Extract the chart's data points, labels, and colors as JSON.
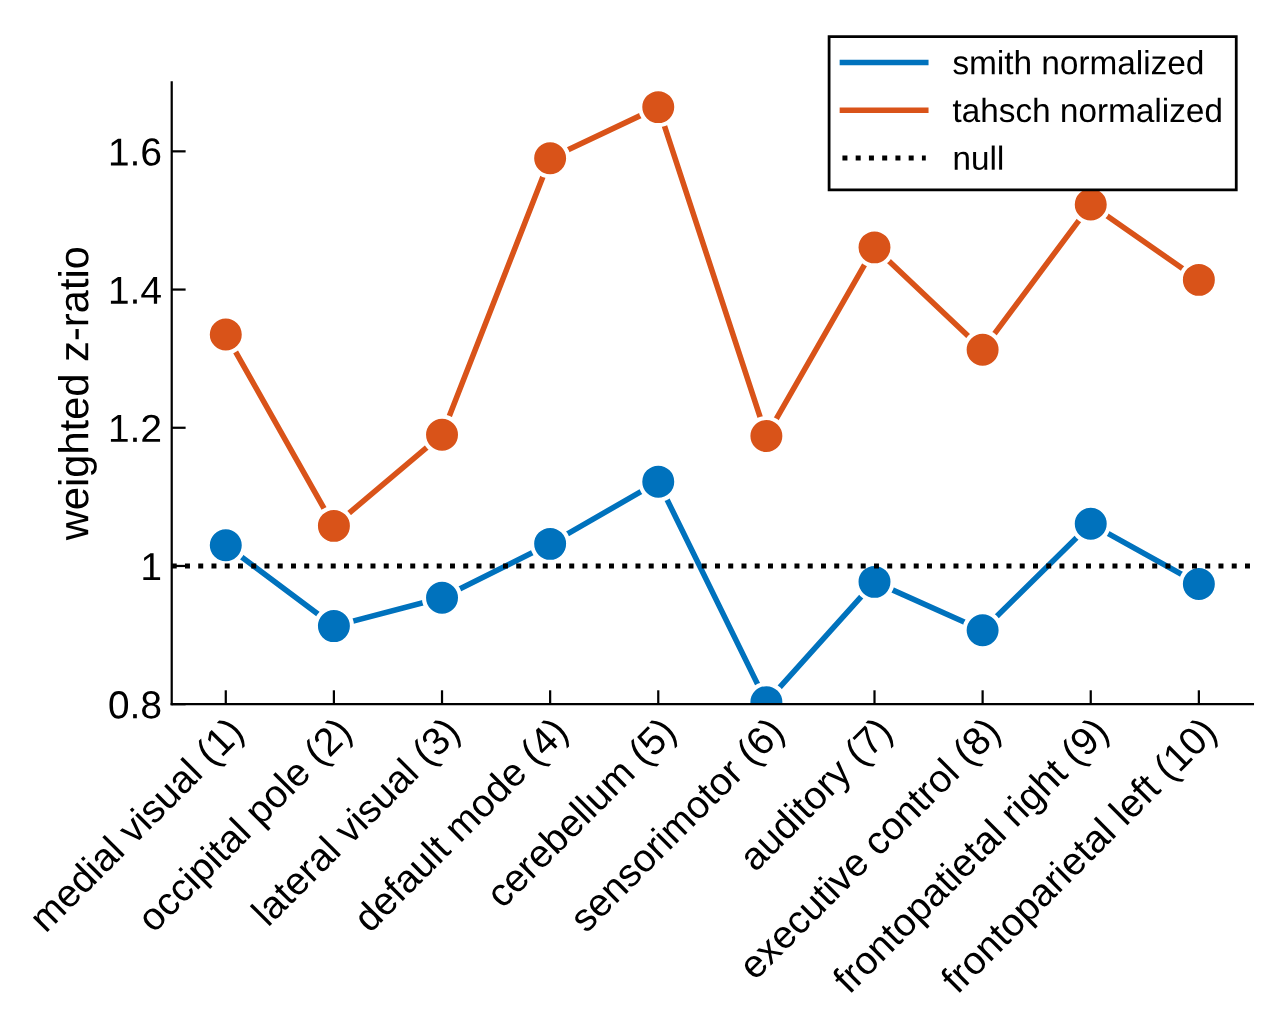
{
  "chart_data": {
    "type": "line",
    "ylabel": "weighted z-ratio",
    "categories": [
      "medial visual (1)",
      "occipital pole (2)",
      "lateral visual (3)",
      "default mode (4)",
      "cerebellum (5)",
      "sensorimotor (6)",
      "auditory (7)",
      "executive control (8)",
      "frontopatietal right (9)",
      "frontoparietal left (10)"
    ],
    "series": [
      {
        "name": "smith normalized",
        "color": "#0072bd",
        "values": [
          1.03,
          0.913,
          0.954,
          1.032,
          1.122,
          0.803,
          0.977,
          0.907,
          1.061,
          0.974
        ]
      },
      {
        "name": "tahsch normalized",
        "color": "#d95319",
        "values": [
          1.335,
          1.058,
          1.19,
          1.59,
          1.664,
          1.188,
          1.461,
          1.313,
          1.523,
          1.414
        ]
      }
    ],
    "ref_lines": [
      {
        "axis": "y",
        "value": 1,
        "label": "null",
        "color": "#000000",
        "line_style": "dotted"
      }
    ],
    "ylim": [
      0.8,
      1.7
    ],
    "yticks": [
      0.8,
      1,
      1.2,
      1.4,
      1.6
    ],
    "marker": "circle",
    "line_style": "solid",
    "legend": "top right",
    "grid": false
  }
}
